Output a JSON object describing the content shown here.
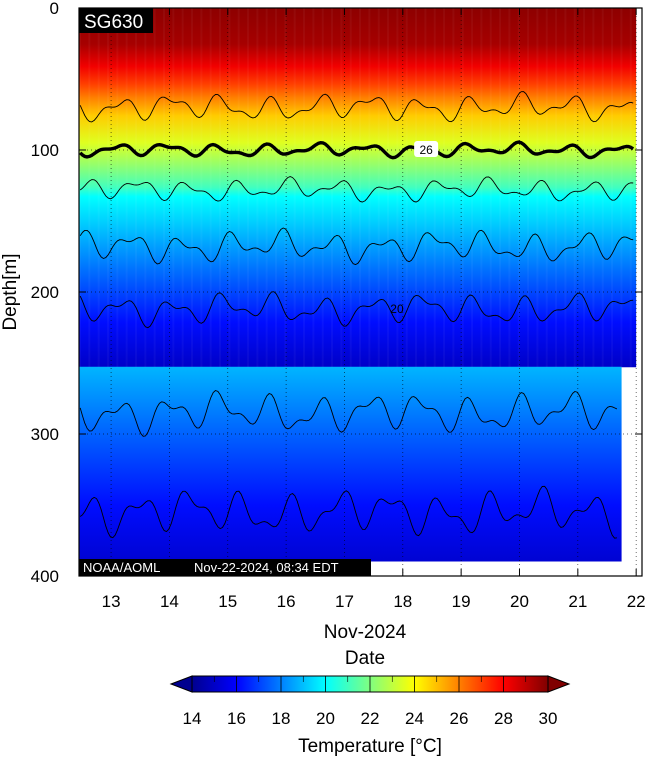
{
  "chart_data": {
    "type": "heatmap",
    "glider_label": "SG630",
    "credit": "NOAA/AOML",
    "timestamp": "Nov-22-2024, 08:34 EDT",
    "xlabel": "Date",
    "x_month_label": "Nov-2024",
    "ylabel": "Depth[m]",
    "x_ticks": [
      "13",
      "14",
      "15",
      "16",
      "17",
      "18",
      "19",
      "20",
      "21",
      "22"
    ],
    "x_tick_values": [
      13,
      14,
      15,
      16,
      17,
      18,
      19,
      20,
      21,
      22
    ],
    "xlim": [
      12.45,
      22.1
    ],
    "y_ticks": [
      "0",
      "100",
      "200",
      "300",
      "400"
    ],
    "y_tick_values": [
      0,
      100,
      200,
      300,
      400
    ],
    "ylim": [
      0,
      400
    ],
    "y_inverted": true,
    "grid": "dotted",
    "data_extent": {
      "x_start": 12.45,
      "x_end_shallow": 22.0,
      "x_end_deep": 21.75,
      "deep_cutoff_depth": 253
    },
    "temperature_by_depth": [
      {
        "depth": 0,
        "temp": 29.8
      },
      {
        "depth": 40,
        "temp": 29.4
      },
      {
        "depth": 65,
        "temp": 28.2
      },
      {
        "depth": 85,
        "temp": 27.0
      },
      {
        "depth": 100,
        "temp": 26.0
      },
      {
        "depth": 120,
        "temp": 24.8
      },
      {
        "depth": 150,
        "temp": 23.5
      },
      {
        "depth": 175,
        "temp": 22.3
      },
      {
        "depth": 200,
        "temp": 21.0
      },
      {
        "depth": 210,
        "temp": 20.0
      },
      {
        "depth": 240,
        "temp": 19.2
      },
      {
        "depth": 290,
        "temp": 17.8
      },
      {
        "depth": 350,
        "temp": 16.2
      },
      {
        "depth": 400,
        "temp": 15.0
      }
    ],
    "contours": [
      {
        "level": 28,
        "mean_depth": 70,
        "amplitude": 6,
        "bold": false,
        "label": ""
      },
      {
        "level": 26,
        "mean_depth": 100,
        "amplitude": 3,
        "bold": true,
        "label": "26",
        "label_x": 18.4
      },
      {
        "level": 24,
        "mean_depth": 128,
        "amplitude": 5,
        "bold": false,
        "label": ""
      },
      {
        "level": 22,
        "mean_depth": 168,
        "amplitude": 7,
        "bold": false,
        "label": ""
      },
      {
        "level": 20,
        "mean_depth": 212,
        "amplitude": 7,
        "bold": false,
        "label": "20",
        "label_x": 17.9
      },
      {
        "level": 18,
        "mean_depth": 285,
        "amplitude": 9,
        "bold": false,
        "label": ""
      },
      {
        "level": 16,
        "mean_depth": 355,
        "amplitude": 10,
        "bold": false,
        "label": ""
      }
    ],
    "colorbar": {
      "title": "Temperature [°C]",
      "min": 14,
      "max": 30,
      "ticks": [
        "14",
        "16",
        "18",
        "20",
        "22",
        "24",
        "26",
        "28",
        "30"
      ],
      "tick_values": [
        14,
        16,
        18,
        20,
        22,
        24,
        26,
        28,
        30
      ],
      "colormap": [
        "#00008f",
        "#0000ff",
        "#0080ff",
        "#00ffff",
        "#80ff80",
        "#ffff00",
        "#ff8000",
        "#ff0000",
        "#800000"
      ]
    }
  }
}
